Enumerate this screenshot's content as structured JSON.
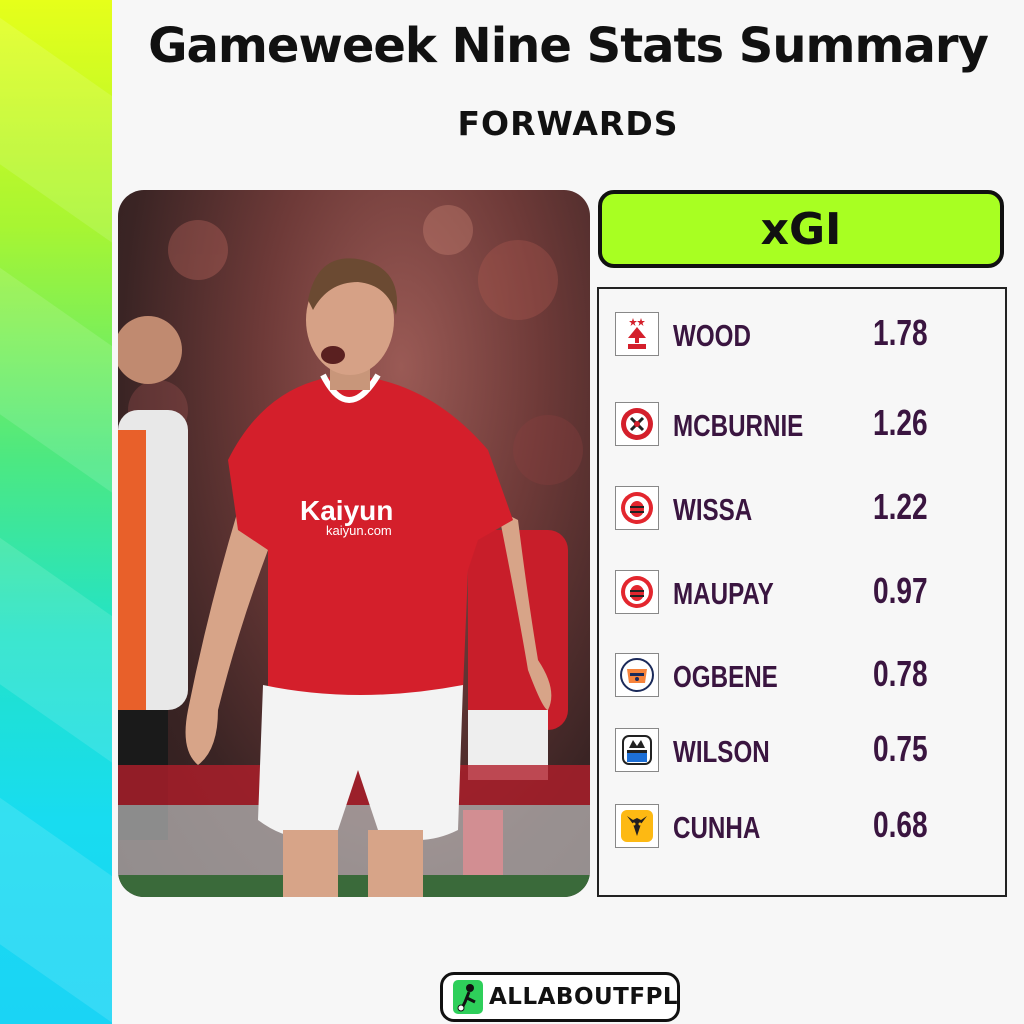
{
  "title": "Gameweek Nine Stats Summary",
  "subtitle": "FORWARDS",
  "stat_header": "xGI",
  "photo": {
    "shirt_sponsor": "Kaiyun",
    "shirt_sponsor_url": "kaiyun.com"
  },
  "rows": [
    {
      "name": "WOOD",
      "value": "1.78",
      "club_icon": "nottingham-forest-crest"
    },
    {
      "name": "MCBURNIE",
      "value": "1.26",
      "club_icon": "sheffield-united-crest"
    },
    {
      "name": "WISSA",
      "value": "1.22",
      "club_icon": "brentford-crest"
    },
    {
      "name": "MAUPAY",
      "value": "0.97",
      "club_icon": "brentford-crest"
    },
    {
      "name": "OGBENE",
      "value": "0.78",
      "club_icon": "luton-town-crest"
    },
    {
      "name": "WILSON",
      "value": "0.75",
      "club_icon": "newcastle-crest"
    },
    {
      "name": "CUNHA",
      "value": "0.68",
      "club_icon": "wolves-crest"
    }
  ],
  "brand": "ALLABOUTFPL",
  "colors": {
    "accent": "#a8ff22",
    "text_purple": "#3a1540"
  }
}
